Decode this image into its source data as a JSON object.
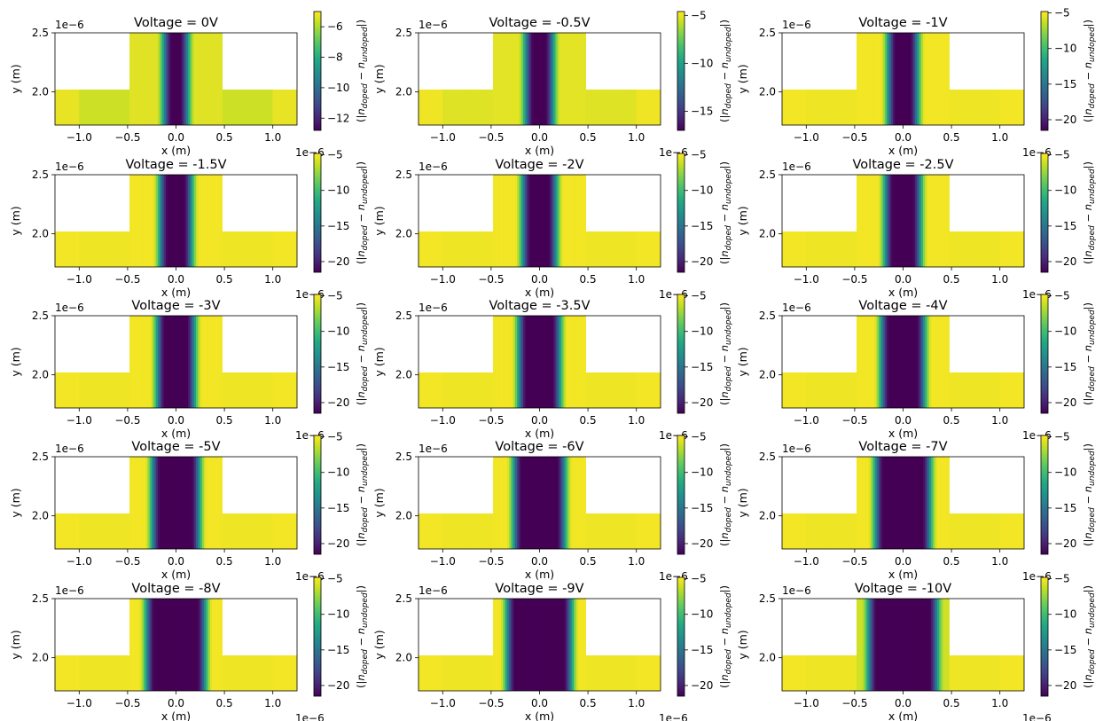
{
  "chart_data": {
    "type": "heatmap",
    "title": "",
    "xlabel": "x (m)",
    "ylabel": "y (m)",
    "colorbar_label": "(|n_doped − n_undoped|)",
    "colormap": "viridis",
    "x_multiplier": "1e−6",
    "y_multiplier": "1e−6",
    "xlim": [
      -1.25e-06,
      1.25e-06
    ],
    "ylim": [
      1.72e-06,
      2.5e-06
    ],
    "xticks": [
      -1.0,
      -0.5,
      0.0,
      0.5,
      1.0
    ],
    "xtick_labels": [
      "−1.0",
      "−0.5",
      "0.0",
      "0.5",
      "1.0"
    ],
    "yticks": [
      2.0,
      2.5
    ],
    "ytick_labels": [
      "2.0",
      "2.5"
    ],
    "geometry_um": {
      "slab_x": [
        -1.25,
        1.25
      ],
      "slab_y": [
        1.72,
        2.02
      ],
      "rib_x": [
        -0.48,
        0.48
      ],
      "rib_y": [
        2.02,
        2.5
      ]
    },
    "panels": [
      {
        "title": "Voltage = 0V",
        "voltage": 0,
        "cb_min": -12.8,
        "cb_max": -5.0,
        "cb_ticks": [
          -12,
          -10,
          -8,
          -6
        ],
        "cb_tick_labels": [
          "−12",
          "−10",
          "−8",
          "−6"
        ],
        "depletion_half_width_um": 0.04,
        "background_level": -5.6,
        "rib_level": -5.35
      },
      {
        "title": "Voltage = -0.5V",
        "voltage": -0.5,
        "cb_min": -17.0,
        "cb_max": -4.6,
        "cb_ticks": [
          -15,
          -10,
          -5
        ],
        "cb_tick_labels": [
          "−15",
          "−10",
          "−5"
        ],
        "depletion_half_width_um": 0.06,
        "background_level": -5.2,
        "rib_level": -5.1
      },
      {
        "title": "Voltage = -1V",
        "voltage": -1,
        "cb_min": -21.5,
        "cb_max": -4.8,
        "cb_ticks": [
          -20,
          -15,
          -10,
          -5
        ],
        "cb_tick_labels": [
          "−20",
          "−15",
          "−10",
          "−5"
        ],
        "depletion_half_width_um": 0.07,
        "background_level": -5.2,
        "rib_level": -5.1
      },
      {
        "title": "Voltage = -1.5V",
        "voltage": -1.5,
        "cb_min": -21.5,
        "cb_max": -4.8,
        "cb_ticks": [
          -20,
          -15,
          -10,
          -5
        ],
        "cb_tick_labels": [
          "−20",
          "−15",
          "−10",
          "−5"
        ],
        "depletion_half_width_um": 0.08,
        "background_level": -5.2,
        "rib_level": -5.1
      },
      {
        "title": "Voltage = -2V",
        "voltage": -2,
        "cb_min": -21.5,
        "cb_max": -4.8,
        "cb_ticks": [
          -20,
          -15,
          -10,
          -5
        ],
        "cb_tick_labels": [
          "−20",
          "−15",
          "−10",
          "−5"
        ],
        "depletion_half_width_um": 0.09,
        "background_level": -5.2,
        "rib_level": -5.1
      },
      {
        "title": "Voltage = -2.5V",
        "voltage": -2.5,
        "cb_min": -21.5,
        "cb_max": -4.8,
        "cb_ticks": [
          -20,
          -15,
          -10,
          -5
        ],
        "cb_tick_labels": [
          "−20",
          "−15",
          "−10",
          "−5"
        ],
        "depletion_half_width_um": 0.1,
        "background_level": -5.2,
        "rib_level": -5.1
      },
      {
        "title": "Voltage = -3V",
        "voltage": -3,
        "cb_min": -21.5,
        "cb_max": -4.8,
        "cb_ticks": [
          -20,
          -15,
          -10,
          -5
        ],
        "cb_tick_labels": [
          "−20",
          "−15",
          "−10",
          "−5"
        ],
        "depletion_half_width_um": 0.11,
        "background_level": -5.2,
        "rib_level": -5.1
      },
      {
        "title": "Voltage = -3.5V",
        "voltage": -3.5,
        "cb_min": -21.5,
        "cb_max": -4.8,
        "cb_ticks": [
          -20,
          -15,
          -10,
          -5
        ],
        "cb_tick_labels": [
          "−20",
          "−15",
          "−10",
          "−5"
        ],
        "depletion_half_width_um": 0.13,
        "background_level": -5.2,
        "rib_level": -5.1
      },
      {
        "title": "Voltage = -4V",
        "voltage": -4,
        "cb_min": -21.5,
        "cb_max": -4.8,
        "cb_ticks": [
          -20,
          -15,
          -10,
          -5
        ],
        "cb_tick_labels": [
          "−20",
          "−15",
          "−10",
          "−5"
        ],
        "depletion_half_width_um": 0.14,
        "background_level": -5.2,
        "rib_level": -5.1
      },
      {
        "title": "Voltage = -5V",
        "voltage": -5,
        "cb_min": -21.5,
        "cb_max": -4.8,
        "cb_ticks": [
          -20,
          -15,
          -10,
          -5
        ],
        "cb_tick_labels": [
          "−20",
          "−15",
          "−10",
          "−5"
        ],
        "depletion_half_width_um": 0.16,
        "background_level": -5.2,
        "rib_level": -5.1
      },
      {
        "title": "Voltage = -6V",
        "voltage": -6,
        "cb_min": -21.5,
        "cb_max": -4.8,
        "cb_ticks": [
          -20,
          -15,
          -10,
          -5
        ],
        "cb_tick_labels": [
          "−20",
          "−15",
          "−10",
          "−5"
        ],
        "depletion_half_width_um": 0.18,
        "background_level": -5.2,
        "rib_level": -5.1
      },
      {
        "title": "Voltage = -7V",
        "voltage": -7,
        "cb_min": -21.5,
        "cb_max": -4.8,
        "cb_ticks": [
          -20,
          -15,
          -10,
          -5
        ],
        "cb_tick_labels": [
          "−20",
          "−15",
          "−10",
          "−5"
        ],
        "depletion_half_width_um": 0.2,
        "background_level": -5.2,
        "rib_level": -5.1
      },
      {
        "title": "Voltage = -8V",
        "voltage": -8,
        "cb_min": -21.5,
        "cb_max": -4.8,
        "cb_ticks": [
          -20,
          -15,
          -10,
          -5
        ],
        "cb_tick_labels": [
          "−20",
          "−15",
          "−10",
          "−5"
        ],
        "depletion_half_width_um": 0.22,
        "background_level": -5.2,
        "rib_level": -5.1
      },
      {
        "title": "Voltage = -9V",
        "voltage": -9,
        "cb_min": -21.5,
        "cb_max": -4.8,
        "cb_ticks": [
          -20,
          -15,
          -10,
          -5
        ],
        "cb_tick_labels": [
          "−20",
          "−15",
          "−10",
          "−5"
        ],
        "depletion_half_width_um": 0.25,
        "background_level": -5.2,
        "rib_level": -5.1
      },
      {
        "title": "Voltage = -10V",
        "voltage": -10,
        "cb_min": -21.5,
        "cb_max": -4.8,
        "cb_ticks": [
          -20,
          -15,
          -10,
          -5
        ],
        "cb_tick_labels": [
          "−20",
          "−15",
          "−10",
          "−5"
        ],
        "depletion_half_width_um": 0.27,
        "background_level": -5.2,
        "rib_level": -6.0
      }
    ]
  }
}
